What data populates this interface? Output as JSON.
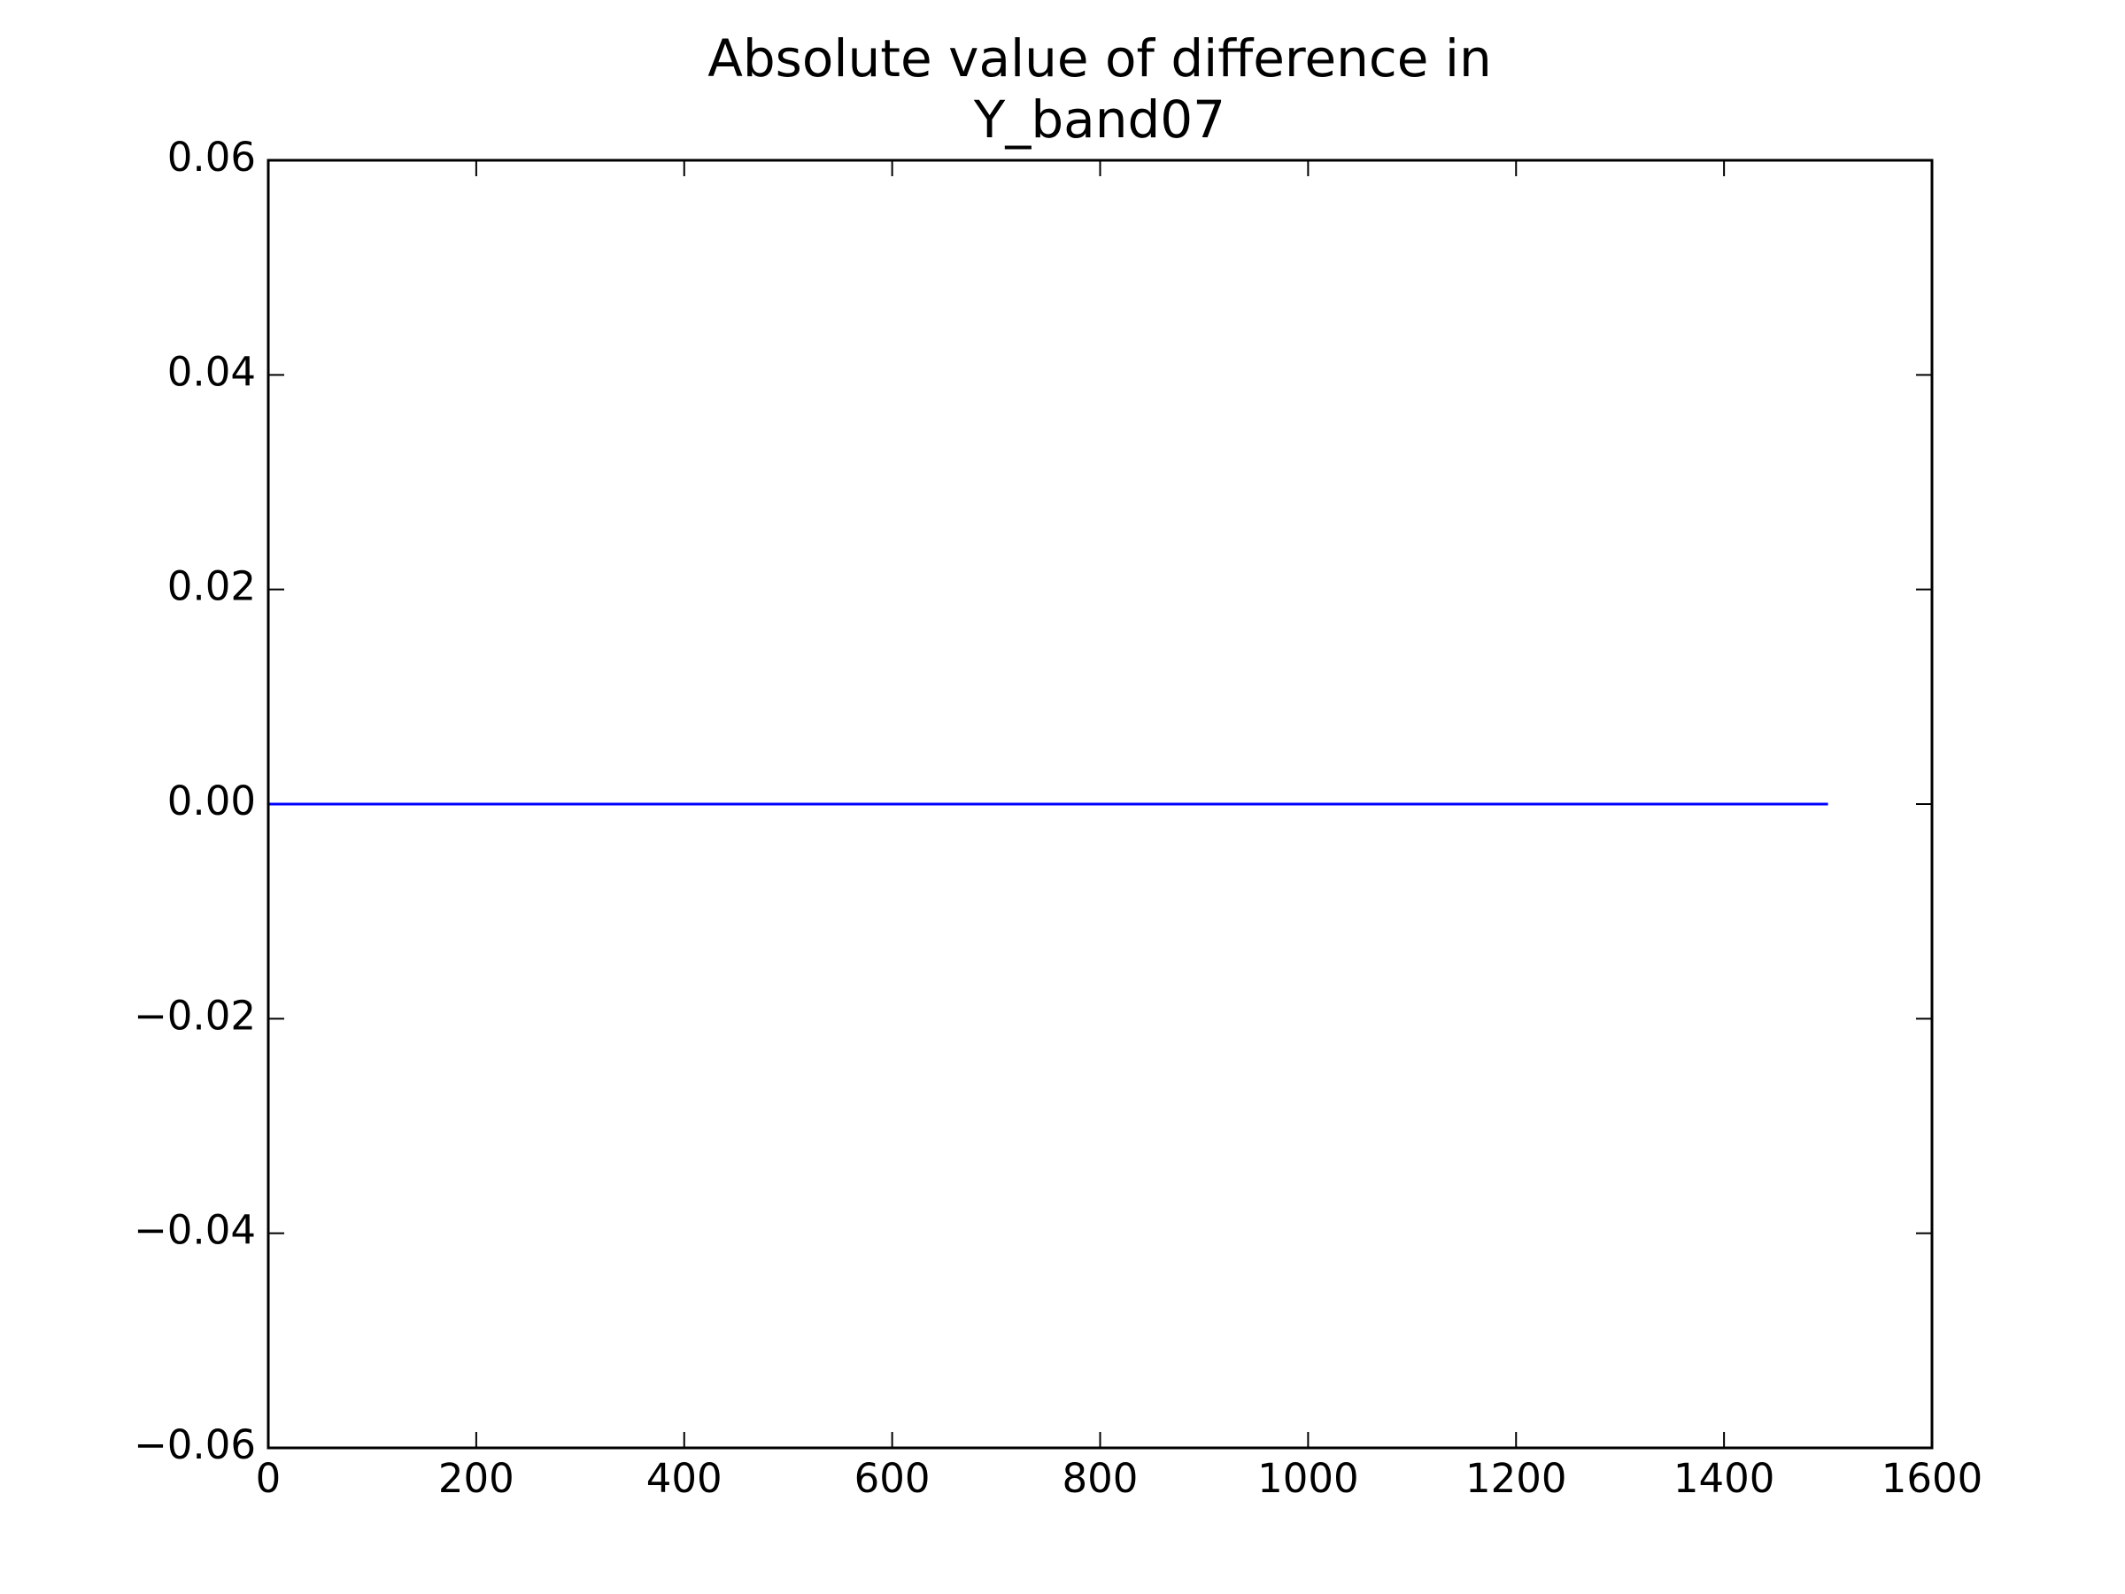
{
  "chart_data": {
    "type": "line",
    "title": [
      "Absolute value of difference in",
      "Y_band07"
    ],
    "x": [
      0,
      1500
    ],
    "series": [
      {
        "color": "#0000ff",
        "values": [
          0,
          0
        ]
      }
    ],
    "xlim": [
      0,
      1600
    ],
    "xticks": [
      0,
      200,
      400,
      600,
      800,
      1000,
      1200,
      1400,
      1600
    ],
    "ylim": [
      -0.06,
      0.06
    ],
    "yticks": [
      {
        "value": -0.06,
        "label": "−0.06"
      },
      {
        "value": -0.04,
        "label": "−0.04"
      },
      {
        "value": -0.02,
        "label": "−0.02"
      },
      {
        "value": 0,
        "label": "0.00"
      },
      0.02,
      0.04,
      0.06
    ],
    "grid": false
  }
}
